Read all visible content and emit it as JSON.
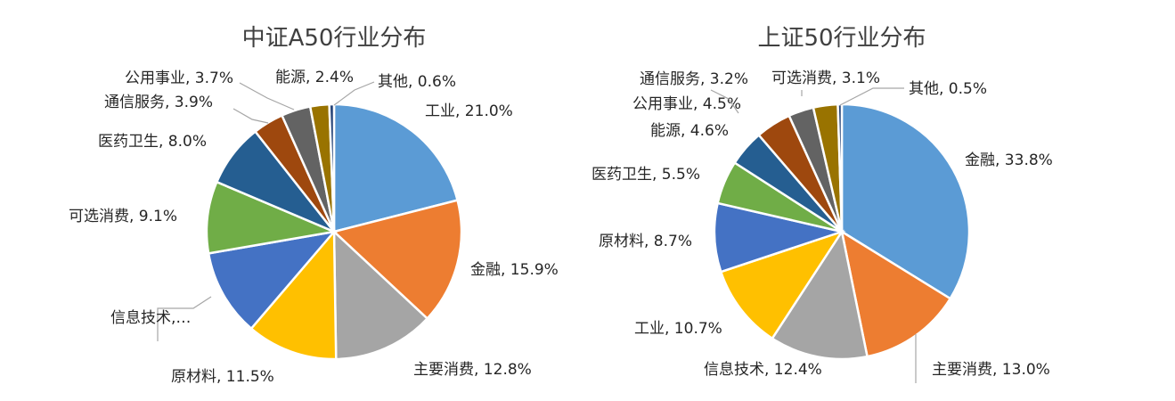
{
  "chart_data": [
    {
      "type": "pie",
      "title": "中证A50行业分布",
      "slices": [
        {
          "name": "工业",
          "value": 21.0,
          "label": "工业, 21.0%",
          "color": "#5b9bd5"
        },
        {
          "name": "金融",
          "value": 15.9,
          "label": "金融, 15.9%",
          "color": "#ed7d31"
        },
        {
          "name": "主要消费",
          "value": 12.8,
          "label": "主要消费, 12.8%",
          "color": "#a5a5a5"
        },
        {
          "name": "原材料",
          "value": 11.5,
          "label": "原材料, 11.5%",
          "color": "#ffc000"
        },
        {
          "name": "信息技术",
          "value": 11.0,
          "label": "信息技术,…",
          "color": "#4472c4"
        },
        {
          "name": "可选消费",
          "value": 9.1,
          "label": "可选消费, 9.1%",
          "color": "#70ad47"
        },
        {
          "name": "医药卫生",
          "value": 8.0,
          "label": "医药卫生, 8.0%",
          "color": "#255e91"
        },
        {
          "name": "通信服务",
          "value": 3.9,
          "label": "通信服务, 3.9%",
          "color": "#9e480e"
        },
        {
          "name": "公用事业",
          "value": 3.7,
          "label": "公用事业, 3.7%",
          "color": "#636363"
        },
        {
          "name": "能源",
          "value": 2.4,
          "label": "能源, 2.4%",
          "color": "#997300"
        },
        {
          "name": "其他",
          "value": 0.6,
          "label": "其他, 0.6%",
          "color": "#264478"
        }
      ]
    },
    {
      "type": "pie",
      "title": "上证50行业分布",
      "slices": [
        {
          "name": "金融",
          "value": 33.8,
          "label": "金融, 33.8%",
          "color": "#5b9bd5"
        },
        {
          "name": "主要消费",
          "value": 13.0,
          "label": "主要消费, 13.0%",
          "color": "#ed7d31"
        },
        {
          "name": "信息技术",
          "value": 12.4,
          "label": "信息技术, 12.4%",
          "color": "#a5a5a5"
        },
        {
          "name": "工业",
          "value": 10.7,
          "label": "工业, 10.7%",
          "color": "#ffc000"
        },
        {
          "name": "原材料",
          "value": 8.7,
          "label": "原材料, 8.7%",
          "color": "#4472c4"
        },
        {
          "name": "医药卫生",
          "value": 5.5,
          "label": "医药卫生, 5.5%",
          "color": "#70ad47"
        },
        {
          "name": "能源",
          "value": 4.6,
          "label": "能源, 4.6%",
          "color": "#255e91"
        },
        {
          "name": "公用事业",
          "value": 4.5,
          "label": "公用事业, 4.5%",
          "color": "#9e480e"
        },
        {
          "name": "通信服务",
          "value": 3.2,
          "label": "通信服务, 3.2%",
          "color": "#636363"
        },
        {
          "name": "可选消费",
          "value": 3.1,
          "label": "可选消费, 3.1%",
          "color": "#997300"
        },
        {
          "name": "其他",
          "value": 0.5,
          "label": "其他, 0.5%",
          "color": "#264478"
        }
      ]
    }
  ]
}
